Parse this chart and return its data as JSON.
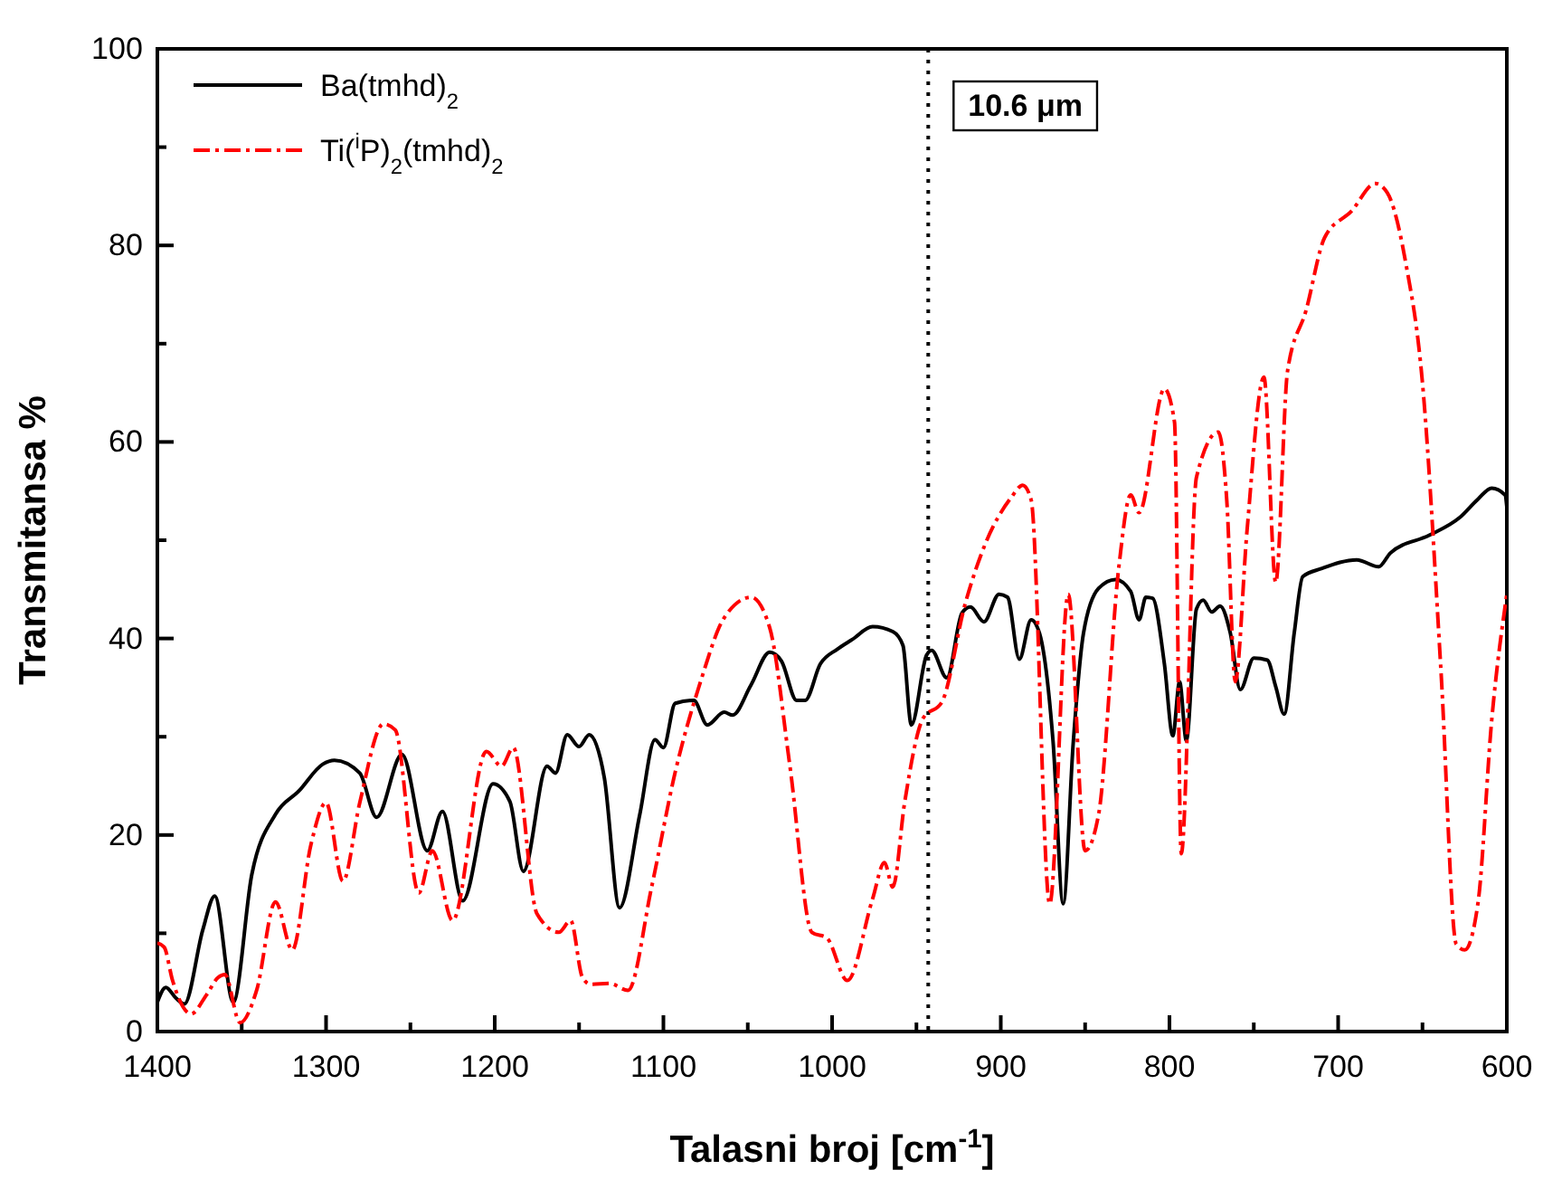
{
  "chart_data": {
    "type": "line",
    "xlabel": "Talasni broj [cm$^{-1}$]",
    "ylabel": "Transmitansa %",
    "xlim": [
      1400,
      600
    ],
    "ylim": [
      0,
      100
    ],
    "xticks": [
      1400,
      {
        "value": 1350,
        "label": null
      },
      1300,
      {
        "value": 1250,
        "label": null
      },
      1200,
      {
        "value": 1150,
        "label": null
      },
      1100,
      {
        "value": 1050,
        "label": null
      },
      1000,
      {
        "value": 950,
        "label": null
      },
      900,
      {
        "value": 850,
        "label": null
      },
      800,
      {
        "value": 750,
        "label": null
      },
      700,
      {
        "value": 650,
        "label": null
      },
      600
    ],
    "yticks": [
      0,
      {
        "value": 10,
        "label": null
      },
      20,
      {
        "value": 30,
        "label": null
      },
      40,
      {
        "value": 50,
        "label": null
      },
      60,
      {
        "value": 70,
        "label": null
      },
      80,
      {
        "value": 90,
        "label": null
      },
      100
    ],
    "grid": false,
    "legend": "top left",
    "ref_lines": [
      {
        "axis": "x",
        "value": 943,
        "label": "10.6 μm",
        "color": "#000000",
        "line_style": "dotted"
      }
    ],
    "series": [
      {
        "name": "Ba(tmhd)$_{2}$",
        "color": "#000000",
        "line_style": "solid",
        "x": [
          1400,
          1395,
          1389,
          1384,
          1373,
          1366,
          1355,
          1344,
          1330,
          1316,
          1302,
          1295,
          1280,
          1270,
          1255,
          1240,
          1231,
          1219,
          1201,
          1191,
          1183,
          1169,
          1164,
          1157,
          1150,
          1144,
          1135,
          1126,
          1114,
          1105,
          1100,
          1093,
          1082,
          1074,
          1064,
          1059,
          1048,
          1037,
          1030,
          1021,
          1016,
          1007,
          997,
          988,
          976,
          964,
          958,
          953,
          944,
          941,
          932,
          923,
          918,
          910,
          901,
          896,
          889,
          882,
          877,
          869,
          863,
          857,
          851,
          842,
          832,
          823,
          818,
          814,
          810,
          803,
          798,
          794,
          790,
          784,
          780,
          775,
          770,
          764,
          758,
          750,
          742,
          737,
          732,
          726,
          721,
          710,
          689,
          676,
          669,
          646,
          628,
          617,
          609,
          601,
          600
        ],
        "values": [
          3,
          4.5,
          3.4,
          2.8,
          10.4,
          13.8,
          3,
          16,
          22.1,
          24.5,
          27.2,
          27.6,
          26.3,
          21.8,
          28.2,
          18.4,
          22.4,
          13.3,
          25.2,
          23.4,
          16.3,
          27,
          26.3,
          30.2,
          29,
          30.2,
          25.8,
          12.6,
          22.1,
          29.7,
          28.9,
          33.4,
          33.7,
          31.2,
          32.5,
          32.2,
          35.3,
          38.6,
          37.7,
          33.7,
          33.7,
          37.4,
          38.9,
          39.9,
          41.2,
          40.7,
          39.3,
          31.2,
          38.3,
          38.8,
          36,
          42.6,
          43.2,
          41.7,
          44.5,
          44.2,
          37.9,
          41.9,
          40.5,
          29.5,
          13,
          29.5,
          40.5,
          45.1,
          46,
          44.8,
          41.9,
          44.2,
          44.1,
          37.4,
          30.1,
          35.6,
          29.6,
          43,
          43.9,
          42.7,
          43.3,
          40.6,
          34.8,
          38,
          37.8,
          35.1,
          32.3,
          40.6,
          46.3,
          47.1,
          48,
          47.3,
          48.7,
          50.5,
          52.3,
          54.2,
          55.3,
          54.6,
          53.4
        ]
      },
      {
        "name": "Ti($^{i}$P)$_{2}$(tmhd)$_{2}$",
        "color": "#ff0000",
        "line_style": "dashed",
        "x": [
          1400,
          1396,
          1391,
          1380,
          1371,
          1364,
          1360,
          1351,
          1341,
          1330,
          1320,
          1309,
          1300,
          1290,
          1280,
          1266,
          1259,
          1245,
          1237,
          1225,
          1205,
          1196,
          1189,
          1175,
          1162,
          1155,
          1148,
          1143,
          1132,
          1121,
          1107,
          1093,
          1078,
          1064,
          1048,
          1037,
          1025,
          1012,
          1003,
          991,
          976,
          969,
          964,
          957,
          946,
          935,
          921,
          909,
          894,
          887,
          882,
          871,
          860,
          850,
          842,
          830,
          823,
          818,
          803,
          797,
          793,
          784,
          771,
          766,
          761,
          754,
          744,
          737,
          730,
          719,
          708,
          692,
          678,
          671,
          660,
          650,
          639,
          630,
          625,
          617,
          609,
          600
        ],
        "values": [
          9,
          8.6,
          5.2,
          1.8,
          3.7,
          5.5,
          5.8,
          0.9,
          4.3,
          13.2,
          8.3,
          19,
          23.3,
          15.3,
          23.3,
          31.3,
          30.7,
          14.1,
          18.4,
          11.3,
          28.5,
          27,
          28.9,
          12,
          10.1,
          11.3,
          5.5,
          4.8,
          4.9,
          4.2,
          14.7,
          26.4,
          35.6,
          42.1,
          44.2,
          41.1,
          27,
          10.1,
          9.5,
          5.2,
          13.5,
          17.2,
          14.7,
          23.3,
          31.9,
          33.5,
          43.6,
          49.7,
          54.3,
          55.6,
          54.1,
          13,
          44.5,
          18.4,
          22.1,
          47.3,
          54.6,
          52.8,
          65.4,
          62,
          18.1,
          56.4,
          61,
          54,
          35.6,
          51,
          66.6,
          45.7,
          67.2,
          73.4,
          80.8,
          83.5,
          86.3,
          85.4,
          78.3,
          66,
          36.6,
          8.9,
          8.3,
          13.2,
          31.6,
          44.5
        ]
      }
    ]
  }
}
